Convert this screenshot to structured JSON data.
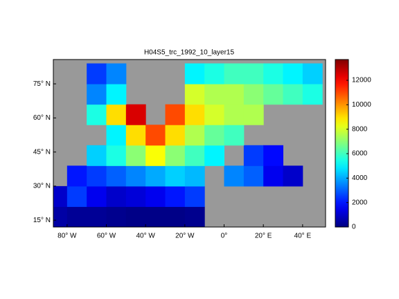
{
  "chart_data": {
    "type": "heatmap",
    "title": "H04S5_trc_1992_10_layer15",
    "x_edges": [
      -90,
      -80,
      -70,
      -60,
      -50,
      -40,
      -30,
      -20,
      -10,
      0,
      10,
      20,
      30,
      40,
      50
    ],
    "y_edges": [
      12,
      21,
      30,
      39,
      48,
      57,
      66,
      75,
      84
    ],
    "values": [
      [
        500,
        300,
        300,
        200,
        100,
        100,
        100,
        200,
        null,
        null,
        null,
        null,
        null,
        null
      ],
      [
        1000,
        2500,
        1500,
        1000,
        1200,
        1500,
        2000,
        2500,
        null,
        null,
        null,
        null,
        null,
        null
      ],
      [
        null,
        2000,
        2500,
        3000,
        3500,
        4000,
        4500,
        4200,
        null,
        3500,
        3000,
        1500,
        1000,
        null
      ],
      [
        null,
        null,
        4500,
        5500,
        7000,
        8500,
        7000,
        6000,
        5000,
        null,
        2500,
        1800,
        null,
        null
      ],
      [
        null,
        null,
        null,
        5000,
        9000,
        11000,
        9000,
        7500,
        6500,
        6000,
        null,
        null,
        null,
        null
      ],
      [
        null,
        null,
        5500,
        9000,
        12500,
        null,
        11000,
        9000,
        8000,
        7500,
        7500,
        null,
        null,
        null
      ],
      [
        null,
        null,
        3500,
        5000,
        null,
        null,
        null,
        8000,
        7500,
        7500,
        7000,
        6500,
        6000,
        5500
      ],
      [
        null,
        null,
        2500,
        3500,
        null,
        null,
        null,
        5000,
        5500,
        6000,
        6000,
        5500,
        5000,
        4500
      ]
    ],
    "xlim": [
      -87,
      51.7
    ],
    "ylim": [
      12,
      85.7
    ],
    "xticks": [
      {
        "value": -80,
        "label": "80° W"
      },
      {
        "value": -60,
        "label": "60° W"
      },
      {
        "value": -40,
        "label": "40° W"
      },
      {
        "value": -20,
        "label": "20° W"
      },
      {
        "value": 0,
        "label": "0°"
      },
      {
        "value": 20,
        "label": "20° E"
      },
      {
        "value": 40,
        "label": "40° E"
      }
    ],
    "yticks": [
      {
        "value": 15,
        "label": "15° N"
      },
      {
        "value": 30,
        "label": "30° N"
      },
      {
        "value": 45,
        "label": "45° N"
      },
      {
        "value": 60,
        "label": "60° N"
      },
      {
        "value": 75,
        "label": "75° N"
      }
    ],
    "clim": [
      0,
      13700
    ],
    "cticks": [
      0,
      2000,
      4000,
      6000,
      8000,
      10000,
      12000
    ],
    "colormap": "jet",
    "land_color": "#999999"
  }
}
